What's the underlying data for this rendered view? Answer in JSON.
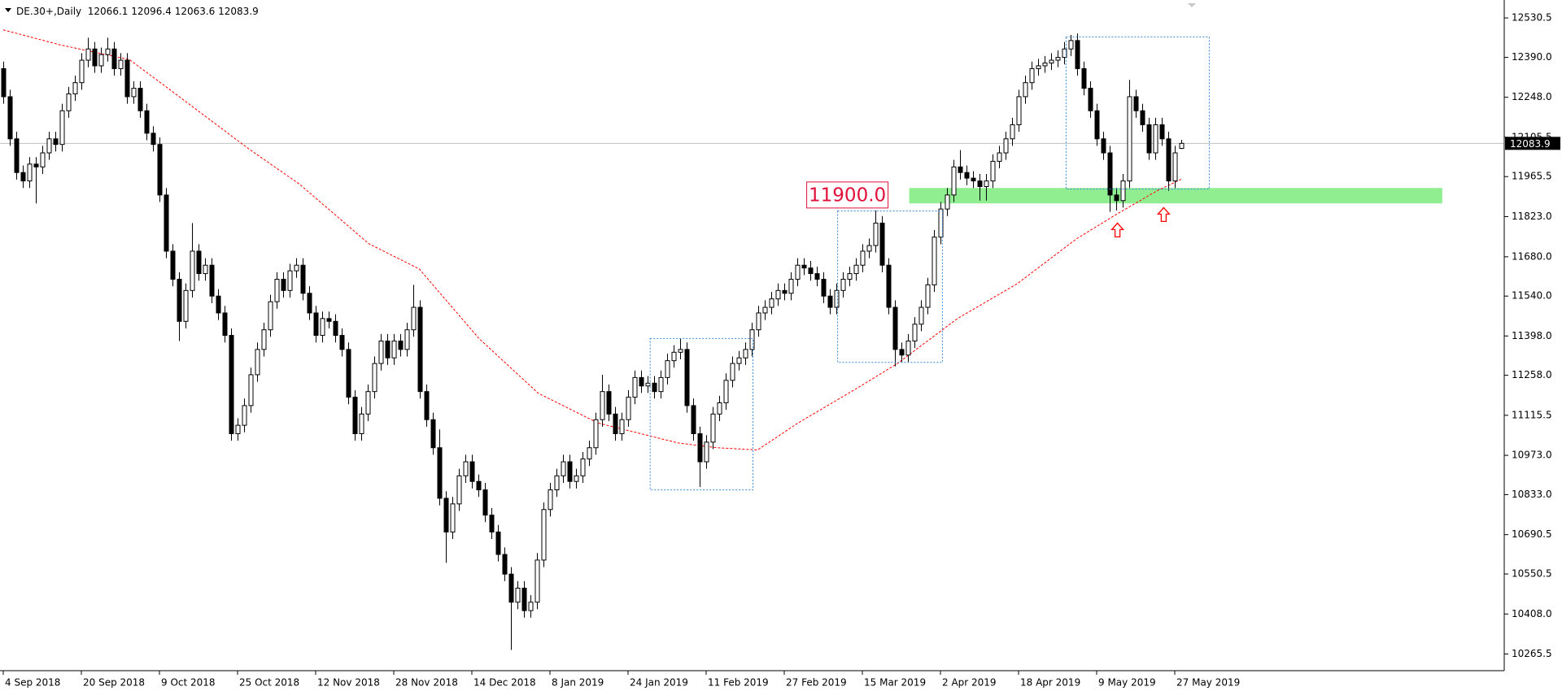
{
  "chart_data": {
    "type": "candlestick",
    "symbol": "DE.30+,Daily",
    "up_color": "#ffffff",
    "down_color": "#000000",
    "categories": [
      "4 Sep 2018",
      null,
      null,
      null,
      null,
      null,
      null,
      null,
      null,
      null,
      null,
      null,
      "20 Sep 2018",
      null,
      null,
      null,
      null,
      null,
      null,
      null,
      null,
      null,
      null,
      null,
      "9 Oct 2018",
      null,
      null,
      null,
      null,
      null,
      null,
      null,
      null,
      null,
      null,
      null,
      "25 Oct 2018",
      null,
      null,
      null,
      null,
      null,
      null,
      null,
      null,
      null,
      null,
      null,
      "12 Nov 2018",
      null,
      null,
      null,
      null,
      null,
      null,
      null,
      null,
      null,
      null,
      null,
      "28 Nov 2018",
      null,
      null,
      null,
      null,
      null,
      null,
      null,
      null,
      null,
      null,
      null,
      "14 Dec 2018",
      null,
      null,
      null,
      null,
      null,
      null,
      null,
      null,
      null,
      null,
      null,
      "8 Jan 2019",
      null,
      null,
      null,
      null,
      null,
      null,
      null,
      null,
      null,
      null,
      null,
      "24 Jan 2019",
      null,
      null,
      null,
      null,
      null,
      null,
      null,
      null,
      null,
      null,
      null,
      "11 Feb 2019",
      null,
      null,
      null,
      null,
      null,
      null,
      null,
      null,
      null,
      null,
      null,
      "27 Feb 2019",
      null,
      null,
      null,
      null,
      null,
      null,
      null,
      null,
      null,
      null,
      null,
      "15 Mar 2019",
      null,
      null,
      null,
      null,
      null,
      null,
      null,
      null,
      null,
      null,
      null,
      "2 Apr 2019",
      null,
      null,
      null,
      null,
      null,
      null,
      null,
      null,
      null,
      null,
      null,
      "18 Apr 2019",
      null,
      null,
      null,
      null,
      null,
      null,
      null,
      null,
      null,
      null,
      null,
      "9 May 2019",
      null,
      null,
      null,
      null,
      null,
      null,
      null,
      null,
      null,
      null,
      null,
      "27 May 2019",
      null
    ],
    "open": [
      12350,
      12250,
      12100,
      11980,
      11950,
      12010,
      12000,
      12050,
      12100,
      12080,
      12200,
      12260,
      12300,
      12380,
      12420,
      12360,
      12400,
      12420,
      12350,
      12380,
      12250,
      12280,
      12200,
      12120,
      12080,
      11900,
      11700,
      11600,
      11450,
      11560,
      11700,
      11620,
      11650,
      11540,
      11480,
      11400,
      11050,
      11080,
      11150,
      11260,
      11350,
      11420,
      11520,
      11600,
      11560,
      11630,
      11650,
      11550,
      11480,
      11400,
      11460,
      11450,
      11400,
      11350,
      11180,
      11050,
      11120,
      11200,
      11300,
      11380,
      11320,
      11380,
      11350,
      11420,
      11500,
      11200,
      11100,
      11000,
      10820,
      10700,
      10800,
      10900,
      10950,
      10880,
      10850,
      10760,
      10700,
      10620,
      10550,
      10450,
      10500,
      10420,
      10450,
      10600,
      10780,
      10850,
      10900,
      10950,
      10880,
      10900,
      10960,
      11000,
      11100,
      11200,
      11120,
      11050,
      11100,
      11180,
      11250,
      11220,
      11230,
      11200,
      11250,
      11310,
      11340,
      11350,
      11150,
      11050,
      10950,
      11020,
      11120,
      11160,
      11240,
      11300,
      11320,
      11350,
      11420,
      11480,
      11500,
      11530,
      11560,
      11550,
      11600,
      11650,
      11640,
      11620,
      11600,
      11540,
      11500,
      11560,
      11600,
      11620,
      11650,
      11700,
      11720,
      11800,
      11650,
      11500,
      11350,
      11330,
      11380,
      11440,
      11500,
      11580,
      11750,
      11850,
      11900,
      12000,
      11980,
      11960,
      11950,
      11930,
      11950,
      12020,
      12050,
      12100,
      12150,
      12250,
      12300,
      12350,
      12360,
      12370,
      12380,
      12390,
      12420,
      12450,
      12350,
      12280,
      12200,
      12100,
      12050,
      11900,
      11880,
      11950,
      12250,
      12200,
      12150,
      12050,
      12150,
      12100,
      11950,
      12066.1
    ],
    "high": [
      12375,
      12275,
      12125,
      12005,
      12035,
      12035,
      12075,
      12125,
      12125,
      12225,
      12285,
      12325,
      12405,
      12460,
      12445,
      12425,
      12460,
      12445,
      12405,
      12405,
      12305,
      12305,
      12225,
      12145,
      12105,
      11925,
      11725,
      11625,
      11585,
      11800,
      11725,
      11675,
      11675,
      11565,
      11505,
      11425,
      11105,
      11175,
      11285,
      11375,
      11445,
      11545,
      11625,
      11625,
      11655,
      11675,
      11675,
      11575,
      11505,
      11485,
      11485,
      11475,
      11425,
      11375,
      11205,
      11145,
      11225,
      11325,
      11405,
      11405,
      11405,
      11405,
      11445,
      11580,
      11525,
      11225,
      11125,
      11065,
      10845,
      10825,
      10925,
      10975,
      10975,
      10905,
      10875,
      10785,
      10725,
      10645,
      10575,
      10525,
      10525,
      10475,
      10625,
      10805,
      10875,
      10925,
      10975,
      10975,
      10925,
      10985,
      11025,
      11125,
      11260,
      11225,
      11145,
      11125,
      11205,
      11275,
      11275,
      11255,
      11255,
      11275,
      11335,
      11365,
      11390,
      11375,
      11175,
      11075,
      11045,
      11145,
      11185,
      11265,
      11325,
      11345,
      11375,
      11445,
      11505,
      11525,
      11555,
      11585,
      11585,
      11625,
      11675,
      11675,
      11665,
      11645,
      11625,
      11565,
      11585,
      11625,
      11645,
      11675,
      11725,
      11745,
      11845,
      11825,
      11675,
      11525,
      11375,
      11405,
      11465,
      11525,
      11605,
      11775,
      11875,
      11925,
      12025,
      12060,
      12005,
      11985,
      11975,
      11975,
      12045,
      12075,
      12125,
      12175,
      12275,
      12325,
      12375,
      12385,
      12395,
      12405,
      12415,
      12445,
      12470,
      12475,
      12375,
      12305,
      12225,
      12125,
      12075,
      11925,
      11975,
      12310,
      12275,
      12225,
      12175,
      12175,
      12175,
      12125,
      12075,
      12096.4
    ],
    "low": [
      12225,
      12075,
      11955,
      11925,
      11925,
      11870,
      11975,
      12025,
      12055,
      12055,
      12175,
      12235,
      12275,
      12355,
      12335,
      12335,
      12375,
      12325,
      12325,
      12225,
      12225,
      12175,
      12095,
      12055,
      11875,
      11675,
      11575,
      11380,
      11425,
      11535,
      11595,
      11595,
      11515,
      11455,
      11375,
      11025,
      11025,
      11055,
      11125,
      11235,
      11325,
      11395,
      11495,
      11535,
      11535,
      11605,
      11525,
      11455,
      11375,
      11375,
      11425,
      11375,
      11325,
      11155,
      11025,
      11025,
      11095,
      11175,
      11275,
      11295,
      11295,
      11325,
      11325,
      11395,
      11175,
      11075,
      10975,
      10795,
      10590,
      10675,
      10775,
      10875,
      10855,
      10825,
      10735,
      10675,
      10595,
      10525,
      10280,
      10425,
      10395,
      10395,
      10425,
      10575,
      10755,
      10825,
      10875,
      10855,
      10855,
      10875,
      10935,
      10975,
      11075,
      11095,
      11025,
      11025,
      11075,
      11155,
      11195,
      11195,
      11175,
      11175,
      11225,
      11285,
      11315,
      11125,
      11025,
      10860,
      10925,
      10995,
      11095,
      11135,
      11215,
      11275,
      11295,
      11325,
      11395,
      11455,
      11475,
      11505,
      11525,
      11525,
      11575,
      11615,
      11595,
      11575,
      11515,
      11475,
      11475,
      11535,
      11575,
      11595,
      11625,
      11675,
      11695,
      11625,
      11475,
      11290,
      11305,
      11305,
      11355,
      11415,
      11475,
      11555,
      11725,
      11825,
      11875,
      11955,
      11935,
      11925,
      11880,
      11880,
      11925,
      11995,
      12025,
      12075,
      12125,
      12225,
      12275,
      12325,
      12335,
      12345,
      12355,
      12365,
      12395,
      12325,
      12255,
      12175,
      12075,
      12025,
      11840,
      11845,
      11855,
      11925,
      12175,
      12125,
      12025,
      12025,
      12075,
      11915,
      11925,
      12063.6
    ],
    "close": [
      12250,
      12100,
      11980,
      11950,
      12010,
      12000,
      12050,
      12100,
      12080,
      12200,
      12260,
      12300,
      12380,
      12420,
      12360,
      12400,
      12420,
      12350,
      12380,
      12250,
      12280,
      12200,
      12120,
      12080,
      11900,
      11700,
      11600,
      11450,
      11560,
      11700,
      11620,
      11650,
      11540,
      11480,
      11400,
      11050,
      11080,
      11150,
      11260,
      11350,
      11420,
      11520,
      11600,
      11560,
      11630,
      11650,
      11550,
      11480,
      11400,
      11460,
      11450,
      11400,
      11350,
      11180,
      11050,
      11120,
      11200,
      11300,
      11380,
      11320,
      11380,
      11350,
      11420,
      11500,
      11200,
      11100,
      11000,
      10820,
      10700,
      10800,
      10900,
      10950,
      10880,
      10850,
      10760,
      10700,
      10620,
      10550,
      10450,
      10500,
      10420,
      10450,
      10600,
      10780,
      10850,
      10900,
      10950,
      10880,
      10900,
      10960,
      11000,
      11100,
      11200,
      11120,
      11050,
      11100,
      11180,
      11250,
      11220,
      11230,
      11200,
      11250,
      11310,
      11340,
      11350,
      11150,
      11050,
      10950,
      11020,
      11120,
      11160,
      11240,
      11300,
      11320,
      11350,
      11420,
      11480,
      11500,
      11530,
      11560,
      11550,
      11600,
      11650,
      11640,
      11620,
      11600,
      11540,
      11500,
      11560,
      11600,
      11620,
      11650,
      11700,
      11720,
      11800,
      11650,
      11500,
      11350,
      11330,
      11380,
      11440,
      11500,
      11580,
      11750,
      11850,
      11900,
      12000,
      11980,
      11960,
      11950,
      11930,
      11950,
      12020,
      12050,
      12100,
      12150,
      12250,
      12300,
      12350,
      12360,
      12370,
      12380,
      12390,
      12420,
      12450,
      12350,
      12280,
      12200,
      12100,
      12050,
      11900,
      11880,
      11950,
      12250,
      12200,
      12150,
      12050,
      12150,
      12100,
      11950,
      12050,
      12083.9
    ],
    "moving_average": {
      "color": "#ff0000",
      "x": [
        0,
        8.7,
        19.4,
        25.6,
        37.8,
        45.5,
        56.2,
        63.9,
        73.1,
        82.2,
        91.4,
        103.7,
        109.8,
        115.9,
        122.1,
        131.2,
        137.4,
        146.6,
        155.8,
        164.9,
        171.1,
        177.2,
        181
      ],
      "values": [
        12488,
        12435,
        12382,
        12275,
        12063,
        11939,
        11726,
        11637,
        11389,
        11194,
        11088,
        11017,
        11000,
        10992,
        11088,
        11212,
        11300,
        11460,
        11584,
        11744,
        11832,
        11914,
        11956
      ]
    },
    "support_zone": {
      "value": 11900,
      "label": "11900.0",
      "color": "#90ee90",
      "ylim": [
        11870,
        11925
      ],
      "x": [
        139.2,
        221.1
      ]
    },
    "boxes_color": "#3a86d6",
    "boxes": [
      {
        "x": [
          99.4,
          115.2
        ],
        "ylim": [
          10850,
          11389
        ]
      },
      {
        "x": [
          128.2,
          144.3
        ],
        "ylim": [
          11304,
          11843
        ]
      },
      {
        "x": [
          163.3,
          185.3
        ],
        "ylim": [
          11921,
          12463
        ]
      }
    ],
    "arrows_color": "#ff0000",
    "arrows": [
      {
        "x": 171.2,
        "y": 11800
      },
      {
        "x": 178.3,
        "y": 11855
      }
    ],
    "ylim": [
      10209,
      12577
    ],
    "yticks": [
      12530.5,
      {
        "value": 12390,
        "label": "12390.0"
      },
      {
        "value": 12248,
        "label": "12248.0"
      },
      12105.5,
      11965.5,
      {
        "value": 11823,
        "label": "11823.0"
      },
      {
        "value": 11680,
        "label": "11680.0"
      },
      {
        "value": 11540,
        "label": "11540.0"
      },
      {
        "value": 11398,
        "label": "11398.0"
      },
      {
        "value": 11258,
        "label": "11258.0"
      },
      11115.5,
      {
        "value": 10973,
        "label": "10973.0"
      },
      {
        "value": 10833,
        "label": "10833.0"
      },
      10690.5,
      10550.5,
      {
        "value": 10408,
        "label": "10408.0"
      },
      10265.5
    ]
  }
}
